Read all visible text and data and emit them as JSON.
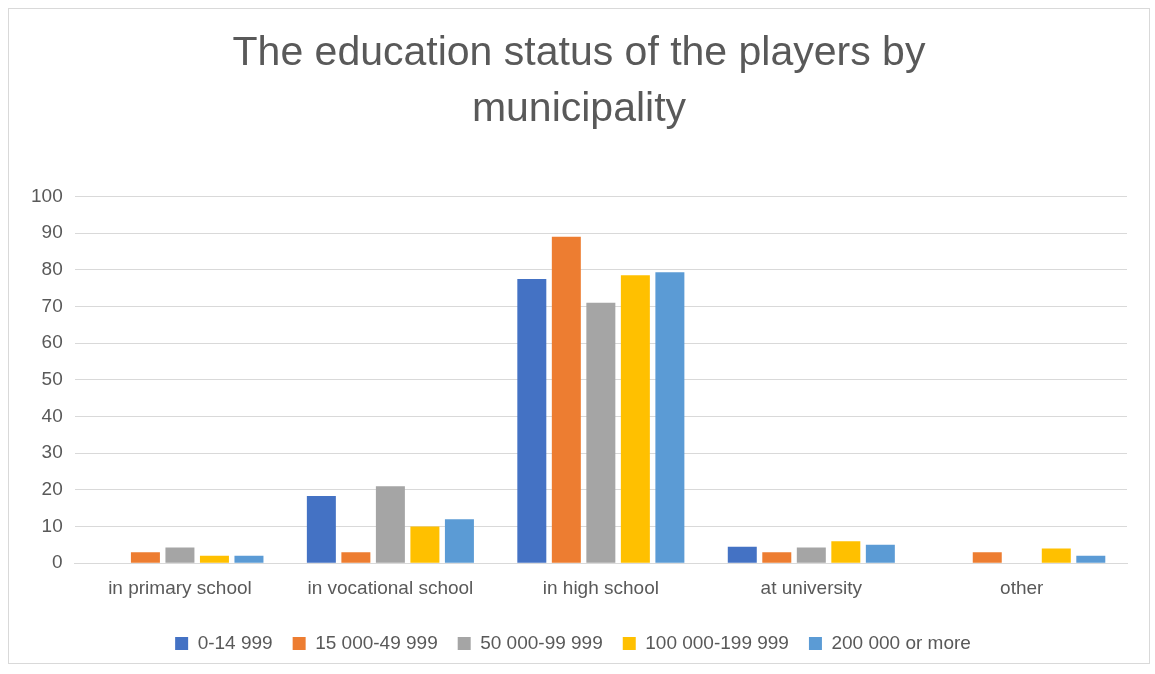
{
  "chart_data": {
    "type": "bar",
    "title": "The education status of the players by municipality",
    "categories": [
      "in primary school",
      "in vocational school",
      "in high school",
      "at university",
      "other"
    ],
    "series": [
      {
        "name": "0-14 999",
        "color": "#4472c4",
        "values": [
          0,
          18.3,
          77.5,
          4.5,
          0
        ]
      },
      {
        "name": "15 000-49 999",
        "color": "#ed7d31",
        "values": [
          3,
          3,
          89,
          3,
          3
        ]
      },
      {
        "name": "50 000-99 999",
        "color": "#a5a5a5",
        "values": [
          4.3,
          21,
          71,
          4.3,
          0
        ]
      },
      {
        "name": "100 000-199 999",
        "color": "#ffc000",
        "values": [
          2,
          10,
          78.5,
          6,
          4
        ]
      },
      {
        "name": "200 000 or more",
        "color": "#5b9bd5",
        "values": [
          2,
          12,
          79.3,
          5,
          2
        ]
      }
    ],
    "ylim": [
      0,
      100
    ],
    "yticks": [
      0,
      10,
      20,
      30,
      40,
      50,
      60,
      70,
      80,
      90,
      100
    ],
    "grid": "y",
    "legend": "bottom"
  }
}
